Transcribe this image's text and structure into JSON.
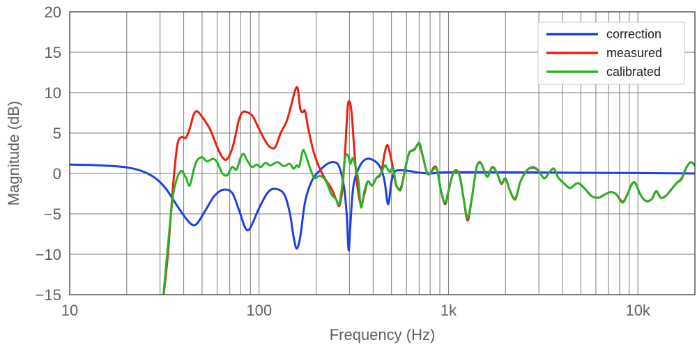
{
  "chart_data": {
    "type": "line",
    "xscale": "log",
    "xlabel": "Frequency (Hz)",
    "ylabel": "Magnitude (dB)",
    "xlim": [
      10,
      20000
    ],
    "ylim": [
      -15,
      20
    ],
    "grid": true,
    "legend_position": "top-right",
    "x_ticks": [
      {
        "value": 10,
        "label": "10"
      },
      {
        "value": 100,
        "label": "100"
      },
      {
        "value": 1000,
        "label": "1k"
      },
      {
        "value": 10000,
        "label": "10k"
      }
    ],
    "y_ticks": [
      {
        "value": -15,
        "label": "−15"
      },
      {
        "value": -10,
        "label": "−10"
      },
      {
        "value": -5,
        "label": "−5"
      },
      {
        "value": 0,
        "label": "0"
      },
      {
        "value": 5,
        "label": "5"
      },
      {
        "value": 10,
        "label": "10"
      },
      {
        "value": 15,
        "label": "15"
      },
      {
        "value": 20,
        "label": "20"
      }
    ],
    "series": [
      {
        "name": "correction",
        "color": "#1f3fe0",
        "points": [
          [
            10,
            1.1
          ],
          [
            13,
            1.05
          ],
          [
            16,
            0.95
          ],
          [
            20,
            0.75
          ],
          [
            24,
            0.3
          ],
          [
            28,
            -0.5
          ],
          [
            32,
            -1.8
          ],
          [
            36,
            -3.6
          ],
          [
            40,
            -5.2
          ],
          [
            44,
            -6.3
          ],
          [
            47,
            -6.2
          ],
          [
            52,
            -4.6
          ],
          [
            58,
            -2.8
          ],
          [
            65,
            -2.0
          ],
          [
            72,
            -2.4
          ],
          [
            78,
            -4.4
          ],
          [
            84,
            -6.6
          ],
          [
            88,
            -7.0
          ],
          [
            93,
            -6.0
          ],
          [
            100,
            -4.3
          ],
          [
            110,
            -2.5
          ],
          [
            120,
            -1.9
          ],
          [
            135,
            -2.5
          ],
          [
            145,
            -4.8
          ],
          [
            152,
            -7.8
          ],
          [
            158,
            -9.3
          ],
          [
            165,
            -7.8
          ],
          [
            175,
            -3.5
          ],
          [
            190,
            -0.9
          ],
          [
            210,
            0.4
          ],
          [
            230,
            1.2
          ],
          [
            250,
            1.4
          ],
          [
            265,
            0.8
          ],
          [
            280,
            -1.5
          ],
          [
            290,
            -5.0
          ],
          [
            297,
            -9.5
          ],
          [
            303,
            -6.5
          ],
          [
            315,
            -1.5
          ],
          [
            340,
            0.9
          ],
          [
            370,
            1.8
          ],
          [
            410,
            1.5
          ],
          [
            440,
            0.6
          ],
          [
            460,
            -1.0
          ],
          [
            480,
            -3.8
          ],
          [
            500,
            -1.0
          ],
          [
            520,
            0.2
          ],
          [
            560,
            0.4
          ],
          [
            620,
            0.3
          ],
          [
            700,
            0.1
          ],
          [
            800,
            0.0
          ],
          [
            1000,
            0.15
          ],
          [
            2000,
            0.15
          ],
          [
            5000,
            0.08
          ],
          [
            10000,
            0.05
          ],
          [
            20000,
            0.0
          ]
        ]
      },
      {
        "name": "measured",
        "color": "#e82010",
        "points": [
          [
            31,
            -16
          ],
          [
            33,
            -10
          ],
          [
            35,
            -2
          ],
          [
            37,
            3.5
          ],
          [
            39,
            4.5
          ],
          [
            41,
            4.4
          ],
          [
            43,
            5.5
          ],
          [
            45,
            7.2
          ],
          [
            47,
            7.7
          ],
          [
            50,
            7.0
          ],
          [
            55,
            5.5
          ],
          [
            60,
            3.3
          ],
          [
            64,
            2.0
          ],
          [
            68,
            1.8
          ],
          [
            73,
            3.5
          ],
          [
            78,
            6.5
          ],
          [
            82,
            7.6
          ],
          [
            88,
            7.5
          ],
          [
            93,
            7.0
          ],
          [
            100,
            5.5
          ],
          [
            108,
            4.0
          ],
          [
            115,
            3.2
          ],
          [
            122,
            3.3
          ],
          [
            130,
            5.0
          ],
          [
            140,
            6.5
          ],
          [
            148,
            8.5
          ],
          [
            155,
            10.3
          ],
          [
            160,
            10.5
          ],
          [
            165,
            8.0
          ],
          [
            170,
            7.6
          ],
          [
            175,
            7.7
          ],
          [
            182,
            5.5
          ],
          [
            195,
            2.5
          ],
          [
            210,
            0.5
          ],
          [
            225,
            -0.8
          ],
          [
            240,
            -1.8
          ],
          [
            255,
            -3.2
          ],
          [
            265,
            -4.0
          ],
          [
            275,
            -2.0
          ],
          [
            285,
            3.0
          ],
          [
            293,
            8.0
          ],
          [
            300,
            8.9
          ],
          [
            308,
            7.5
          ],
          [
            318,
            3.0
          ],
          [
            330,
            -1.5
          ],
          [
            345,
            -3.8
          ],
          [
            360,
            -2.5
          ],
          [
            375,
            -1.0
          ],
          [
            395,
            -1.5
          ],
          [
            415,
            -0.6
          ],
          [
            440,
            0.0
          ],
          [
            460,
            2.5
          ],
          [
            475,
            3.5
          ],
          [
            490,
            2.6
          ],
          [
            510,
            0.6
          ],
          [
            530,
            -1.5
          ],
          [
            560,
            -1.8
          ],
          [
            590,
            0.5
          ],
          [
            620,
            2.5
          ],
          [
            660,
            3.0
          ],
          [
            700,
            3.6
          ],
          [
            730,
            2.2
          ],
          [
            770,
            0.1
          ],
          [
            800,
            0.0
          ],
          [
            840,
            0.8
          ],
          [
            870,
            0.5
          ],
          [
            910,
            -2.0
          ],
          [
            960,
            -3.8
          ],
          [
            1000,
            -2.2
          ],
          [
            1050,
            -0.2
          ],
          [
            1100,
            0.4
          ],
          [
            1150,
            -0.5
          ],
          [
            1200,
            -3.0
          ],
          [
            1260,
            -5.8
          ],
          [
            1320,
            -3.5
          ],
          [
            1400,
            0.5
          ],
          [
            1450,
            1.3
          ],
          [
            1500,
            1.1
          ],
          [
            1600,
            -0.4
          ],
          [
            1700,
            0.8
          ],
          [
            1800,
            0.1
          ],
          [
            1900,
            -1.3
          ],
          [
            2000,
            -0.6
          ],
          [
            2100,
            -2.0
          ],
          [
            2250,
            -3.2
          ],
          [
            2400,
            -1.0
          ],
          [
            2600,
            0.4
          ],
          [
            2800,
            0.7
          ],
          [
            3000,
            0.3
          ],
          [
            3200,
            -0.6
          ],
          [
            3400,
            0.1
          ],
          [
            3600,
            0.6
          ],
          [
            3800,
            -0.5
          ],
          [
            4100,
            -1.3
          ],
          [
            4400,
            -1.8
          ],
          [
            4800,
            -1.2
          ],
          [
            5200,
            -1.8
          ],
          [
            5700,
            -2.8
          ],
          [
            6200,
            -3.0
          ],
          [
            6700,
            -2.6
          ],
          [
            7200,
            -2.3
          ],
          [
            7700,
            -2.6
          ],
          [
            8300,
            -3.5
          ],
          [
            8800,
            -2.6
          ],
          [
            9300,
            -1.3
          ],
          [
            9700,
            -1.2
          ],
          [
            10300,
            -2.6
          ],
          [
            11000,
            -3.4
          ],
          [
            11800,
            -3.2
          ],
          [
            12500,
            -2.2
          ],
          [
            13200,
            -3.0
          ],
          [
            14000,
            -2.8
          ],
          [
            15000,
            -2.0
          ],
          [
            16000,
            -1.2
          ],
          [
            17000,
            -0.7
          ],
          [
            18000,
            0.7
          ],
          [
            19000,
            1.4
          ],
          [
            20000,
            1.0
          ]
        ]
      },
      {
        "name": "calibrated",
        "color": "#2ab02a",
        "points": [
          [
            31,
            -16
          ],
          [
            33,
            -9
          ],
          [
            35,
            -3
          ],
          [
            37,
            -0.5
          ],
          [
            39,
            0.3
          ],
          [
            41,
            -0.5
          ],
          [
            43,
            -1.5
          ],
          [
            45,
            0.3
          ],
          [
            47,
            1.6
          ],
          [
            50,
            2.0
          ],
          [
            53,
            1.5
          ],
          [
            57,
            1.8
          ],
          [
            60,
            1.4
          ],
          [
            64,
            0.0
          ],
          [
            68,
            -0.2
          ],
          [
            72,
            0.8
          ],
          [
            76,
            0.5
          ],
          [
            80,
            2.0
          ],
          [
            83,
            2.4
          ],
          [
            87,
            1.5
          ],
          [
            92,
            0.8
          ],
          [
            97,
            1.1
          ],
          [
            102,
            0.8
          ],
          [
            108,
            1.3
          ],
          [
            115,
            1.0
          ],
          [
            125,
            1.4
          ],
          [
            135,
            0.9
          ],
          [
            145,
            1.2
          ],
          [
            152,
            0.6
          ],
          [
            158,
            1.0
          ],
          [
            163,
            0.9
          ],
          [
            170,
            2.8
          ],
          [
            175,
            2.5
          ],
          [
            182,
            1.3
          ],
          [
            195,
            -0.5
          ],
          [
            210,
            -0.3
          ],
          [
            225,
            -0.9
          ],
          [
            240,
            -2.5
          ],
          [
            255,
            -3.2
          ],
          [
            265,
            -3.8
          ],
          [
            275,
            -1.3
          ],
          [
            285,
            2.0
          ],
          [
            295,
            2.2
          ],
          [
            303,
            1.2
          ],
          [
            312,
            1.9
          ],
          [
            322,
            1.0
          ],
          [
            335,
            -1.0
          ],
          [
            345,
            -4.2
          ],
          [
            360,
            -2.2
          ],
          [
            375,
            -1.0
          ],
          [
            395,
            -1.5
          ],
          [
            415,
            -0.6
          ],
          [
            440,
            0.0
          ],
          [
            460,
            1.0
          ],
          [
            475,
            0.6
          ],
          [
            490,
            0.2
          ],
          [
            510,
            0.6
          ],
          [
            530,
            -1.4
          ],
          [
            560,
            -2.0
          ],
          [
            590,
            0.5
          ],
          [
            620,
            2.6
          ],
          [
            660,
            2.9
          ],
          [
            700,
            3.8
          ],
          [
            730,
            2.3
          ],
          [
            770,
            0.1
          ],
          [
            800,
            0.0
          ],
          [
            840,
            0.6
          ],
          [
            870,
            0.5
          ],
          [
            910,
            -2.0
          ],
          [
            960,
            -3.6
          ],
          [
            1000,
            -2.1
          ],
          [
            1050,
            -0.2
          ],
          [
            1100,
            0.3
          ],
          [
            1150,
            -0.4
          ],
          [
            1200,
            -3.0
          ],
          [
            1260,
            -5.5
          ],
          [
            1320,
            -3.4
          ],
          [
            1400,
            0.5
          ],
          [
            1450,
            1.4
          ],
          [
            1500,
            1.1
          ],
          [
            1600,
            -0.4
          ],
          [
            1700,
            0.7
          ],
          [
            1800,
            0.1
          ],
          [
            1900,
            -1.2
          ],
          [
            2000,
            -0.6
          ],
          [
            2100,
            -2.0
          ],
          [
            2250,
            -3.1
          ],
          [
            2400,
            -1.0
          ],
          [
            2600,
            0.4
          ],
          [
            2800,
            0.8
          ],
          [
            3000,
            0.3
          ],
          [
            3200,
            -0.6
          ],
          [
            3400,
            0.1
          ],
          [
            3600,
            0.6
          ],
          [
            3800,
            -0.5
          ],
          [
            4100,
            -1.3
          ],
          [
            4400,
            -1.8
          ],
          [
            4800,
            -1.2
          ],
          [
            5200,
            -1.8
          ],
          [
            5700,
            -2.8
          ],
          [
            6200,
            -3.0
          ],
          [
            6700,
            -2.6
          ],
          [
            7200,
            -2.3
          ],
          [
            7700,
            -2.6
          ],
          [
            8300,
            -3.6
          ],
          [
            8800,
            -2.6
          ],
          [
            9300,
            -1.3
          ],
          [
            9700,
            -1.2
          ],
          [
            10300,
            -2.6
          ],
          [
            11000,
            -3.4
          ],
          [
            11800,
            -3.2
          ],
          [
            12500,
            -2.2
          ],
          [
            13200,
            -3.0
          ],
          [
            14000,
            -2.8
          ],
          [
            15000,
            -2.0
          ],
          [
            16000,
            -1.2
          ],
          [
            17000,
            -0.6
          ],
          [
            18000,
            0.7
          ],
          [
            19000,
            1.4
          ],
          [
            20000,
            1.0
          ]
        ]
      }
    ]
  }
}
